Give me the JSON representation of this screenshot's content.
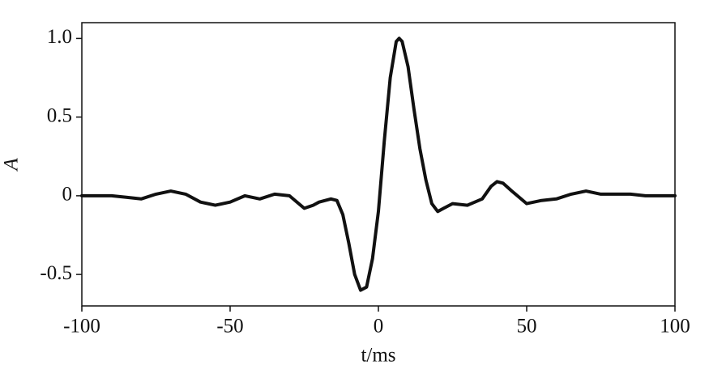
{
  "chart_data": {
    "type": "line",
    "xlabel": "t/ms",
    "ylabel": "A",
    "xlim": [
      -100,
      100
    ],
    "ylim": [
      -0.7,
      1.1
    ],
    "xticks": [
      -100,
      -50,
      0,
      50,
      100
    ],
    "yticks": [
      -0.5,
      0,
      0.5,
      {
        "value": 1,
        "label": "1.0"
      }
    ],
    "x": [
      -100,
      -95,
      -90,
      -85,
      -80,
      -75,
      -70,
      -65,
      -60,
      -55,
      -50,
      -45,
      -40,
      -35,
      -30,
      -25,
      -22,
      -20,
      -16,
      -14,
      -12,
      -10,
      -8,
      -6,
      -4,
      -2,
      0,
      2,
      4,
      6,
      7,
      8,
      10,
      12,
      14,
      16,
      18,
      20,
      22,
      25,
      30,
      35,
      38,
      40,
      42,
      45,
      50,
      55,
      60,
      65,
      70,
      75,
      80,
      85,
      90,
      95,
      100
    ],
    "series": [
      {
        "name": "A",
        "color": "#111111",
        "values": [
          0,
          0,
          0,
          -0.01,
          -0.02,
          0.01,
          0.03,
          0.01,
          -0.04,
          -0.06,
          -0.04,
          0.0,
          -0.02,
          0.01,
          0.0,
          -0.08,
          -0.06,
          -0.04,
          -0.02,
          -0.03,
          -0.12,
          -0.3,
          -0.5,
          -0.6,
          -0.58,
          -0.4,
          -0.1,
          0.35,
          0.75,
          0.98,
          1.0,
          0.98,
          0.82,
          0.55,
          0.3,
          0.1,
          -0.05,
          -0.1,
          -0.08,
          -0.05,
          -0.06,
          -0.02,
          0.06,
          0.09,
          0.08,
          0.03,
          -0.05,
          -0.03,
          -0.02,
          0.01,
          0.03,
          0.01,
          0.01,
          0.01,
          0.0,
          0.0,
          0.0
        ]
      }
    ]
  }
}
